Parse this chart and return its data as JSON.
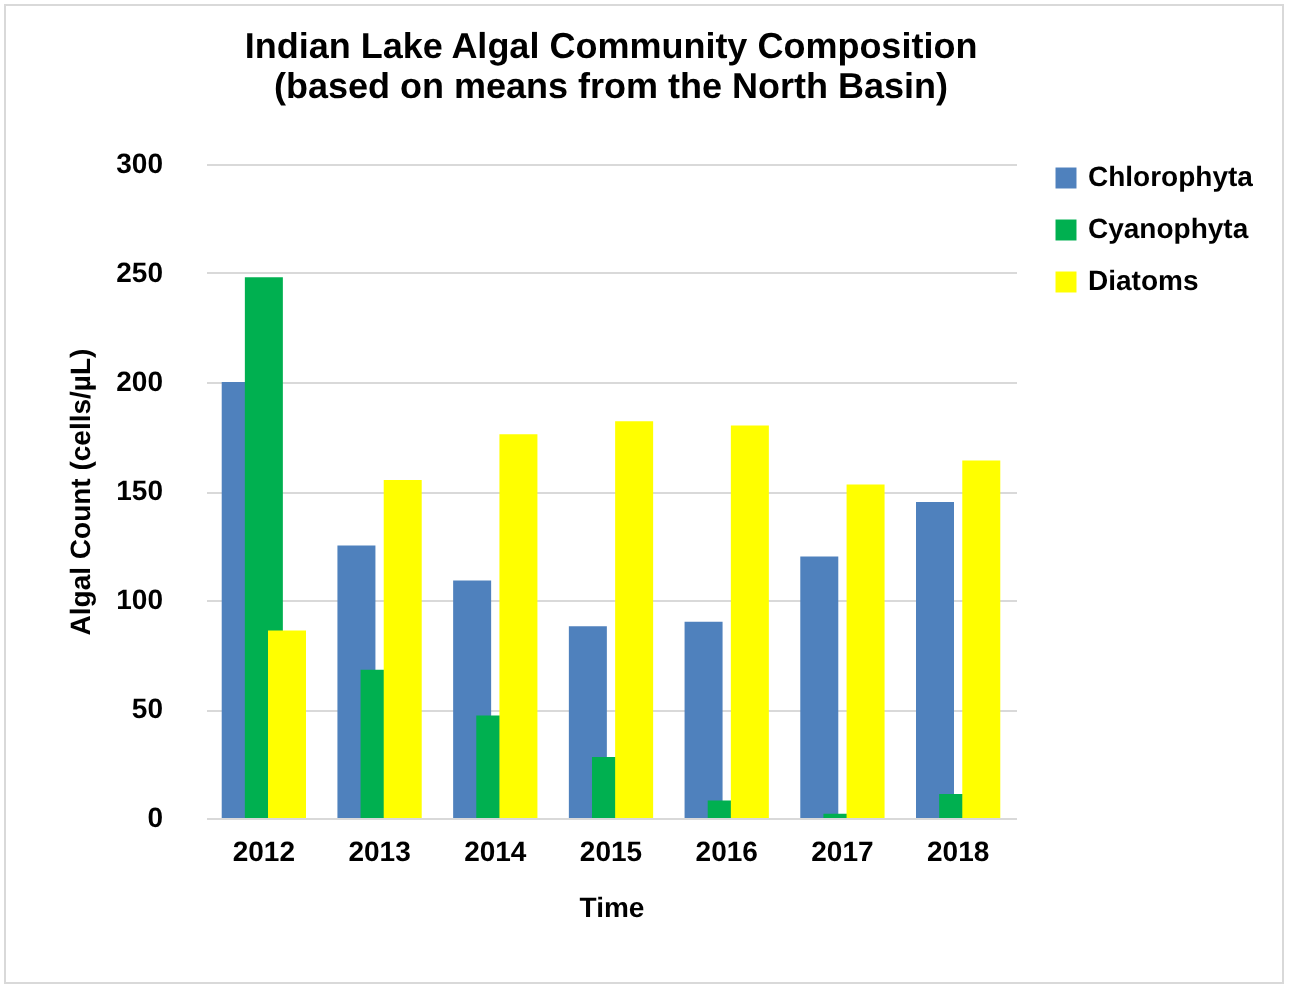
{
  "chart_data": {
    "type": "bar",
    "title": [
      "Indian Lake Algal Community Composition",
      "(based on means from the North Basin)"
    ],
    "xlabel": "Time",
    "ylabel": "Algal Count (cells/µL)",
    "categories": [
      "2012",
      "2013",
      "2014",
      "2015",
      "2016",
      "2017",
      "2018"
    ],
    "series": [
      {
        "name": "Chlorophyta",
        "color": "#4f81bd",
        "values": [
          200,
          125,
          109,
          88,
          90,
          120,
          145
        ]
      },
      {
        "name": "Cyanophyta",
        "color": "#00b050",
        "values": [
          248,
          68,
          47,
          28,
          8,
          2,
          11
        ]
      },
      {
        "name": "Diatoms",
        "color": "#ffff00",
        "values": [
          86,
          155,
          176,
          182,
          180,
          153,
          164
        ]
      }
    ],
    "ylim": [
      0,
      300
    ],
    "yticks": [
      0,
      50,
      100,
      150,
      200,
      250,
      300
    ],
    "grid": "y",
    "legend": "right"
  }
}
